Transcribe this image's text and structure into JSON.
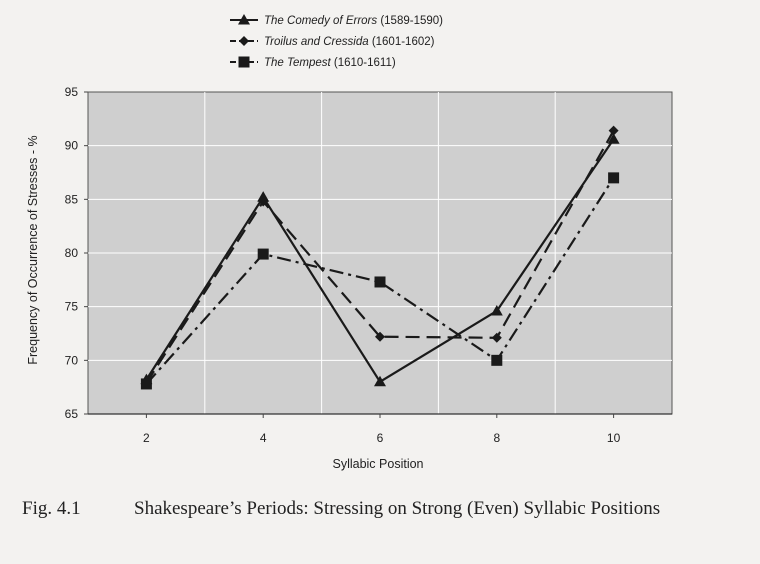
{
  "chart_data": {
    "type": "line",
    "title": "",
    "xlabel": "Syllabic Position",
    "ylabel": "Frequency of Occurrence of Stresses - %",
    "x": [
      2,
      4,
      6,
      8,
      10
    ],
    "ylim": [
      65,
      95
    ],
    "yticks": [
      65,
      70,
      75,
      80,
      85,
      90,
      95
    ],
    "grid": true,
    "legend_position": "top",
    "series": [
      {
        "name": "The Comedy of Errors",
        "period": "(1589-1590)",
        "values": [
          68.2,
          85.2,
          68.0,
          74.6,
          90.6
        ],
        "marker": "triangle",
        "line_style": "solid",
        "color": "#1a1a1a"
      },
      {
        "name": "Troilus and Cressida",
        "period": "(1601-1602)",
        "values": [
          67.9,
          84.8,
          72.2,
          72.1,
          91.4
        ],
        "marker": "diamond",
        "line_style": "dashed",
        "color": "#1a1a1a"
      },
      {
        "name": "The Tempest",
        "period": "(1610-1611)",
        "values": [
          67.8,
          79.9,
          77.3,
          70.0,
          87.0
        ],
        "marker": "square",
        "line_style": "dash-dot",
        "color": "#1a1a1a"
      }
    ]
  },
  "caption": {
    "figure_label": "Fig. 4.1",
    "text": "Shakespeare’s Periods: Stressing on Strong (Even) Syllabic Positions"
  },
  "colors": {
    "plot_background": "#cfcfcf",
    "gridline": "#ffffff",
    "page_background": "#f3f2f0"
  }
}
